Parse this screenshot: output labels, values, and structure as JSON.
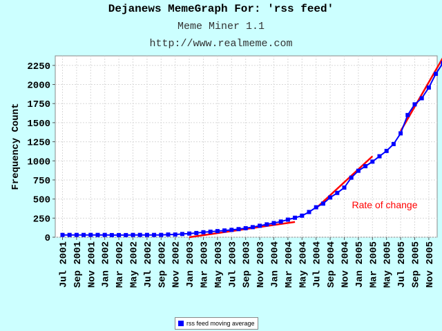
{
  "header": {
    "title": "Dejanews MemeGraph For: 'rss feed'",
    "subtitle": "Meme Miner 1.1",
    "url": "http://www.realmeme.com"
  },
  "chart_data": {
    "type": "line",
    "ylabel": "Frequency Count",
    "xlabel": "",
    "ylim": [
      0,
      2375
    ],
    "yticks": [
      0,
      250,
      500,
      750,
      1000,
      1250,
      1500,
      1750,
      2000,
      2250
    ],
    "x_tick_labels": [
      "Jul 2001",
      "Sep 2001",
      "Nov 2001",
      "Jan 2002",
      "Mar 2002",
      "May 2002",
      "Jul 2002",
      "Sep 2002",
      "Nov 2002",
      "Jan 2003",
      "Mar 2003",
      "May 2003",
      "Jul 2003",
      "Sep 2003",
      "Nov 2003",
      "Jan 2004",
      "Mar 2004",
      "May 2004",
      "Jul 2004",
      "Sep 2004",
      "Nov 2004",
      "Jan 2005",
      "Mar 2005",
      "May 2005",
      "Jul 2005",
      "Sep 2005",
      "Nov 2005"
    ],
    "x_start_month": "Jul 2001",
    "grid": true,
    "legend_position": "bottom-center",
    "series": [
      {
        "name": "rss feed moving average",
        "color": "#0000ff",
        "values": [
          30,
          30,
          30,
          30,
          30,
          30,
          30,
          28,
          28,
          28,
          30,
          30,
          30,
          30,
          30,
          35,
          35,
          42,
          48,
          55,
          65,
          72,
          80,
          88,
          96,
          106,
          118,
          132,
          150,
          168,
          185,
          205,
          230,
          255,
          282,
          330,
          392,
          440,
          520,
          580,
          650,
          780,
          870,
          930,
          990,
          1060,
          1130,
          1220,
          1360,
          1600,
          1740,
          1820,
          1960,
          2140,
          2280
        ]
      }
    ],
    "annotations": [
      {
        "text": "Rate of change",
        "color": "#ff0000"
      }
    ],
    "trend_segments": [
      {
        "from": [
          "Jan 2003",
          0
        ],
        "to": [
          "Apr 2004",
          200
        ]
      },
      {
        "from": [
          "Jul 2004",
          380
        ],
        "to": [
          "Mar 2005",
          1060
        ]
      },
      {
        "from": [
          "Jul 2005",
          1390
        ],
        "to": [
          "Jan 2006",
          2350
        ]
      }
    ]
  }
}
